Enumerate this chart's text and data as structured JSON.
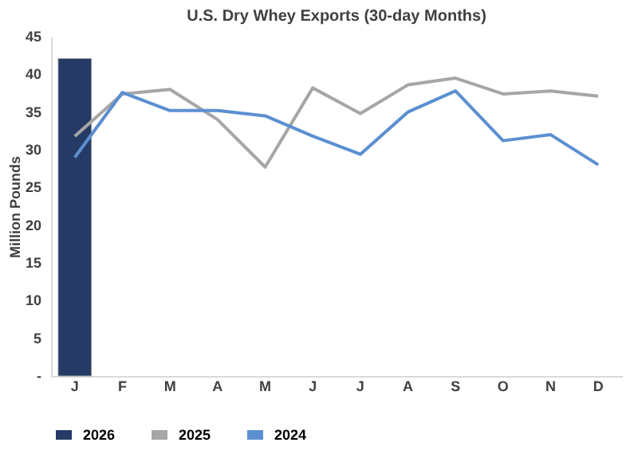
{
  "chart_data": {
    "type": "line",
    "title": "U.S. Dry Whey Exports (30-day Months)",
    "ylabel": "Million Pounds",
    "categories": [
      "J",
      "F",
      "M",
      "A",
      "M",
      "J",
      "J",
      "A",
      "S",
      "O",
      "N",
      "D"
    ],
    "series": [
      {
        "name": "2026",
        "type": "bar",
        "color": "#253a64",
        "values": [
          42.1,
          null,
          null,
          null,
          null,
          null,
          null,
          null,
          null,
          null,
          null,
          null
        ]
      },
      {
        "name": "2025",
        "color": "#a6a6a6",
        "values": [
          31.8,
          37.4,
          38.0,
          34.0,
          27.7,
          38.2,
          34.8,
          38.6,
          39.5,
          37.4,
          37.8,
          37.1
        ]
      },
      {
        "name": "2024",
        "color": "#5b8fd1",
        "values": [
          29.0,
          37.6,
          35.2,
          35.2,
          34.5,
          31.8,
          29.4,
          35.0,
          37.8,
          31.2,
          32.0,
          28.0
        ]
      }
    ],
    "ylim": [
      0,
      45
    ],
    "yticks": [
      {
        "value": 0,
        "label": "-"
      },
      5,
      10,
      15,
      20,
      25,
      30,
      35,
      40,
      45
    ],
    "grid": false,
    "legend": "bottom",
    "marker": "none",
    "line_style": "solid"
  }
}
